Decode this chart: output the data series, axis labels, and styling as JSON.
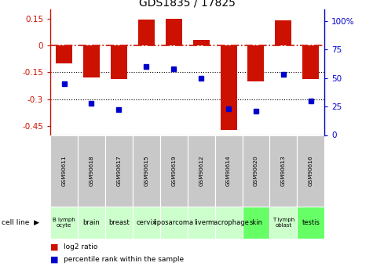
{
  "title": "GDS1835 / 17825",
  "gsm_labels": [
    "GSM90611",
    "GSM90618",
    "GSM90617",
    "GSM90615",
    "GSM90619",
    "GSM90612",
    "GSM90614",
    "GSM90620",
    "GSM90613",
    "GSM90616"
  ],
  "cell_line_labels": [
    "B lymph\nocyte",
    "brain",
    "breast",
    "cervix",
    "liposarcoma",
    "liver",
    "macrophage",
    "skin",
    "T lymph\noblast",
    "testis"
  ],
  "cell_line_colors": [
    "#ccffcc",
    "#ccffcc",
    "#ccffcc",
    "#ccffcc",
    "#ccffcc",
    "#ccffcc",
    "#ccffcc",
    "#66ff66",
    "#ccffcc",
    "#66ff66"
  ],
  "log2_ratio": [
    -0.1,
    -0.18,
    -0.19,
    0.145,
    0.15,
    0.03,
    -0.47,
    -0.2,
    0.14,
    -0.19
  ],
  "percentile_rank": [
    45,
    28,
    22,
    60,
    58,
    50,
    23,
    21,
    53,
    30
  ],
  "ylim_left": [
    -0.5,
    0.2
  ],
  "ylim_right": [
    0,
    110
  ],
  "yticks_left": [
    0.15,
    0.0,
    -0.15,
    -0.3,
    -0.45
  ],
  "yticks_right": [
    0,
    25,
    50,
    75,
    100
  ],
  "bar_color": "#cc1100",
  "dot_color": "#0000cc",
  "zero_line_color": "#cc1100",
  "grid_line_color": "#000000",
  "gsm_bg_color": "#c8c8c8",
  "gsm_border_color": "#ffffff"
}
